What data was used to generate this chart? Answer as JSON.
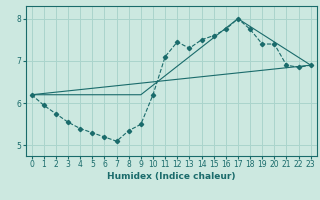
{
  "xlabel": "Humidex (Indice chaleur)",
  "bg_color": "#cce8e0",
  "line_color": "#1a6b6b",
  "grid_color": "#aad4cc",
  "xlim": [
    -0.5,
    23.5
  ],
  "ylim": [
    4.75,
    8.3
  ],
  "yticks": [
    5,
    6,
    7,
    8
  ],
  "xticks": [
    0,
    1,
    2,
    3,
    4,
    5,
    6,
    7,
    8,
    9,
    10,
    11,
    12,
    13,
    14,
    15,
    16,
    17,
    18,
    19,
    20,
    21,
    22,
    23
  ],
  "line1_x": [
    0,
    1,
    2,
    3,
    4,
    5,
    6,
    7,
    8,
    9,
    10,
    11,
    12,
    13,
    14,
    15,
    16,
    17,
    18,
    19,
    20,
    21,
    22,
    23
  ],
  "line1_y": [
    6.2,
    5.95,
    5.75,
    5.55,
    5.4,
    5.3,
    5.2,
    5.1,
    5.35,
    5.5,
    6.2,
    7.1,
    7.45,
    7.3,
    7.5,
    7.6,
    7.75,
    8.0,
    7.75,
    7.4,
    7.4,
    6.9,
    6.85,
    6.9
  ],
  "line2_x": [
    0,
    23
  ],
  "line2_y": [
    6.2,
    6.9
  ],
  "line3_x": [
    0,
    9,
    17,
    23
  ],
  "line3_y": [
    6.2,
    6.2,
    8.0,
    6.9
  ]
}
